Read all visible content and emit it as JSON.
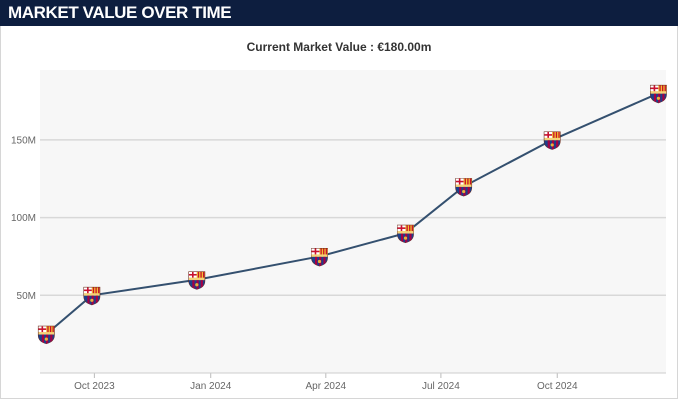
{
  "header": {
    "title": "MARKET VALUE OVER TIME"
  },
  "chart_data": {
    "type": "line",
    "subtitle": "Current Market Value : €180.00m",
    "x_ticks": [
      "Oct 2023",
      "Jan 2024",
      "Apr 2024",
      "Jul 2024",
      "Oct 2024"
    ],
    "y_ticks": [
      "50M",
      "100M",
      "150M"
    ],
    "ylim": [
      0,
      195
    ],
    "grid": true,
    "marker_icon": "club-crest-icon",
    "colors": {
      "line": "#34506f",
      "plot_bg": "#f7f7f7",
      "grid": "#d8d8d8",
      "header_bg": "#0d1e3f"
    },
    "series": [
      {
        "x": [
          "2023-08-24",
          "2023-09-29",
          "2023-12-21",
          "2024-03-27",
          "2024-06-03",
          "2024-07-19",
          "2024-09-27",
          "2024-12-20"
        ],
        "y": [
          25,
          50,
          60,
          75,
          90,
          120,
          150,
          180
        ]
      }
    ]
  }
}
